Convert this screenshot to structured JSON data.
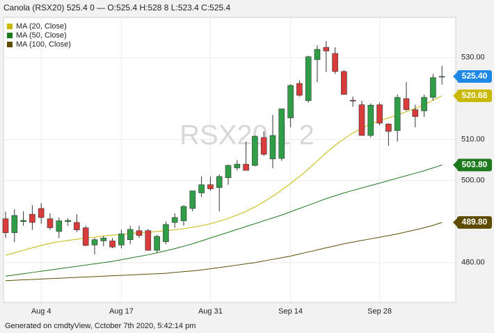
{
  "chart_data": {
    "type": "candlestick",
    "title": "Canola (RSX20) 525.4 0 — O:525.4 H:528 8 L:523.4 C:525.4",
    "watermark": "RSX20 1 2",
    "footer": "Generated on cmdtyView, Cctober 7th 2020, 5:42:14 pm",
    "categories": [
      null,
      null,
      null,
      null,
      "Aug 4",
      null,
      null,
      null,
      null,
      null,
      null,
      null,
      null,
      "Aug 17",
      null,
      null,
      null,
      null,
      null,
      null,
      null,
      null,
      null,
      "Aug 31",
      null,
      null,
      null,
      null,
      null,
      null,
      null,
      null,
      "Sep 14",
      null,
      null,
      null,
      null,
      null,
      null,
      null,
      null,
      null,
      "Sep 28",
      null,
      null,
      null,
      null,
      null,
      null,
      null
    ],
    "open": [
      490.7,
      487.3,
      490,
      491.8,
      493.2,
      490.7,
      487.6,
      490,
      489.8,
      488.5,
      484.3,
      485.3,
      485.3,
      484.3,
      485.6,
      487.8,
      487.8,
      483,
      485.1,
      489.8,
      490.2,
      493.2,
      497,
      499,
      498.3,
      500.7,
      503.1,
      504,
      503.7,
      510.5,
      505.3,
      505.4,
      515.3,
      523.7,
      519.5,
      529.5,
      532.5,
      531,
      526.6,
      519.6,
      518.5,
      511,
      518.5,
      513.8,
      512.2,
      520,
      517.3,
      517,
      520.3,
      525.4
    ],
    "high": [
      492.4,
      493,
      492.5,
      494,
      494.5,
      492,
      491,
      490.8,
      491.8,
      489,
      486,
      486.5,
      486,
      488,
      489,
      489,
      488.2,
      486.8,
      490,
      492,
      494,
      497.5,
      501,
      501,
      501.5,
      503.9,
      505,
      509.5,
      511,
      512,
      516,
      517.5,
      523.5,
      524.5,
      530.5,
      533,
      534,
      532.5,
      527,
      520.5,
      519.5,
      518.8,
      519,
      514,
      521,
      524,
      518.5,
      521,
      526,
      528
    ],
    "low": [
      486,
      485,
      489,
      488,
      489.5,
      488,
      486,
      489,
      487.5,
      484,
      482,
      484,
      483.5,
      483.5,
      484.5,
      486,
      482.9,
      482.5,
      484.5,
      488.5,
      489,
      492.5,
      496,
      497.5,
      492.5,
      499,
      502.5,
      502.5,
      503.5,
      506,
      503,
      504.8,
      513,
      520.5,
      519,
      524,
      526.5,
      526,
      521,
      518,
      511,
      510.5,
      513.5,
      508.5,
      509.5,
      517,
      513,
      515.5,
      519.5,
      523.4
    ],
    "close": [
      487.3,
      491.5,
      490.3,
      489.8,
      491,
      488.5,
      490.2,
      490.3,
      488,
      484.2,
      485.6,
      486,
      483.8,
      487,
      488.1,
      486.6,
      483,
      486.4,
      489.3,
      491,
      493.7,
      497.5,
      499,
      498,
      501,
      503.7,
      504,
      502.5,
      510.8,
      506.4,
      511,
      517.5,
      523.2,
      520.8,
      530.2,
      532,
      531.6,
      526.6,
      521,
      519.4,
      511,
      518.4,
      514,
      512,
      520.3,
      517.3,
      515.6,
      520.3,
      525.1,
      525.4
    ],
    "up_color": "#2f9e47",
    "down_color": "#d93a3a",
    "close_label": "525.40",
    "close_label_color": "#1e88e5",
    "series": [
      {
        "name": "MA (20, Close)",
        "color": "#c9b800",
        "last_label": "520.68",
        "values": [
          481.8,
          482.4,
          483,
          483.6,
          484.2,
          484.7,
          485.1,
          485.4,
          485.7,
          486,
          486.2,
          486.5,
          486.7,
          486.9,
          487.1,
          487.3,
          487.4,
          487.6,
          487.8,
          488,
          488.3,
          488.6,
          489,
          489.5,
          490.1,
          490.8,
          491.6,
          492.5,
          493.6,
          494.8,
          496.2,
          497.7,
          499.3,
          501,
          502.8,
          504.8,
          506.8,
          508.6,
          510.2,
          511.6,
          512.8,
          513.8,
          514.6,
          515.3,
          516,
          516.8,
          517.6,
          518.5,
          519.6,
          520.68
        ]
      },
      {
        "name": "MA (50, Close)",
        "color": "#1f7a1f",
        "last_label": "503.80",
        "values": [
          476.7,
          477,
          477.3,
          477.6,
          477.9,
          478.2,
          478.5,
          478.8,
          479.1,
          479.4,
          479.7,
          480,
          480.3,
          480.7,
          481.1,
          481.5,
          481.9,
          482.4,
          482.9,
          483.4,
          484,
          484.6,
          485.3,
          486,
          486.7,
          487.4,
          488.1,
          488.8,
          489.5,
          490.2,
          490.9,
          491.6,
          492.4,
          493.2,
          494,
          494.8,
          495.6,
          496.3,
          497,
          497.6,
          498.2,
          498.8,
          499.4,
          500,
          500.6,
          501.2,
          501.8,
          502.4,
          503.1,
          503.8
        ]
      },
      {
        "name": "MA (100, Close)",
        "color": "#5e4b00",
        "last_label": "489.80",
        "values": [
          475.6,
          475.7,
          475.8,
          475.9,
          476,
          476.1,
          476.2,
          476.3,
          476.4,
          476.5,
          476.6,
          476.7,
          476.8,
          476.9,
          477,
          477.1,
          477.2,
          477.3,
          477.4,
          477.6,
          477.8,
          478,
          478.2,
          478.5,
          478.8,
          479.1,
          479.4,
          479.7,
          480,
          480.4,
          480.8,
          481.2,
          481.6,
          482.1,
          482.6,
          483.1,
          483.6,
          484.1,
          484.6,
          485,
          485.4,
          485.8,
          486.2,
          486.6,
          487,
          487.5,
          488,
          488.5,
          489.1,
          489.8
        ]
      }
    ],
    "ylim": [
      470.3,
      539.8
    ],
    "yticks": [
      {
        "value": 480,
        "label": "480.00"
      },
      {
        "value": 500,
        "label": "500.00"
      },
      {
        "value": 510,
        "label": "510.00"
      },
      {
        "value": 530,
        "label": "530.00"
      }
    ],
    "grid": true
  }
}
